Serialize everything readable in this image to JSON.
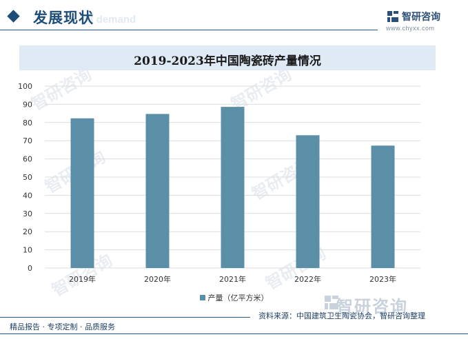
{
  "header": {
    "section_title": "发展现状",
    "section_subtitle": "ed demand",
    "logo_text": "智研咨询",
    "logo_url": "www.chyxx.com"
  },
  "chart_data": {
    "type": "bar",
    "title": "2019-2023年中国陶瓷砖产量情况",
    "categories": [
      "2019年",
      "2020年",
      "2021年",
      "2022年",
      "2023年"
    ],
    "series": [
      {
        "name": "产量（亿平方米）",
        "values": [
          82.3,
          84.7,
          88.6,
          73.0,
          67.3
        ]
      }
    ],
    "ylim": [
      0,
      100
    ],
    "yticks": [
      0,
      10,
      20,
      30,
      40,
      50,
      60,
      70,
      80,
      90,
      100
    ],
    "grid": true,
    "legend_position": "bottom",
    "bar_color": "#5b8fa8"
  },
  "footer": {
    "source": "资料来源：中国建筑卫生陶瓷协会，智研咨询整理",
    "tagline": "精品报告 · 专项定制 · 品质服务",
    "watermark": "智研咨询"
  }
}
